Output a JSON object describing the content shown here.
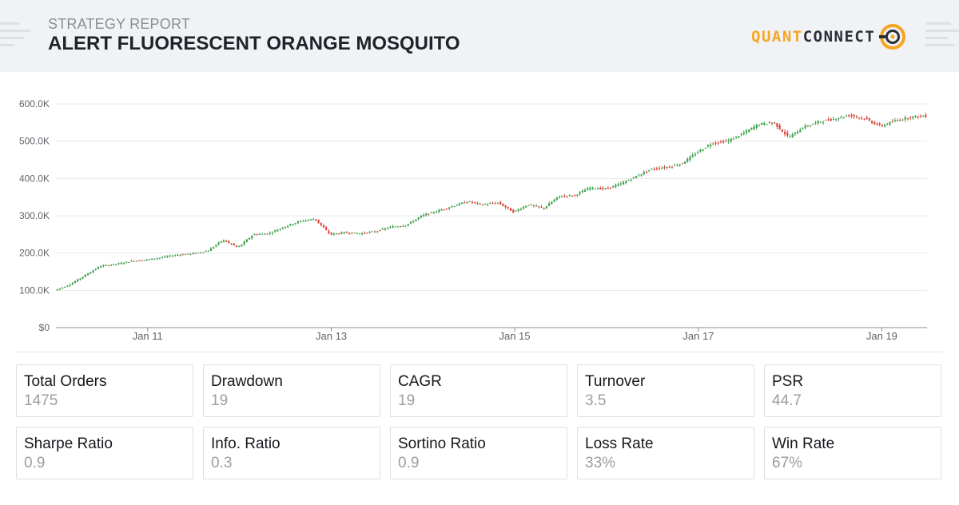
{
  "header": {
    "subtitle": "STRATEGY REPORT",
    "title": "ALERT FLUORESCENT ORANGE MOSQUITO",
    "logo": {
      "part1": "QUANT",
      "part2": "CONNECT",
      "icon": "quantconnect-logo-icon"
    }
  },
  "colors": {
    "up": "#3fa34d",
    "down": "#d9463b",
    "header_bg": "#f1f2f5",
    "logo_orange": "#f5a623",
    "grid": "#e6e8eb"
  },
  "chart_data": {
    "type": "candlestick",
    "title": "",
    "xlabel": "",
    "ylabel": "",
    "ylim": [
      0,
      600000
    ],
    "yticks": [
      0,
      100000,
      200000,
      300000,
      400000,
      500000,
      600000
    ],
    "ytick_labels": [
      "$0",
      "100.0K",
      "200.0K",
      "300.0K",
      "400.0K",
      "500.0K",
      "600.0K"
    ],
    "x_range": [
      "2010-01-01",
      "2019-06-30"
    ],
    "xtick_dates": [
      "2011-01-01",
      "2013-01-01",
      "2015-01-01",
      "2017-01-01",
      "2019-01-01"
    ],
    "xtick_labels": [
      "Jan 11",
      "Jan 13",
      "Jan 15",
      "Jan 17",
      "Jan 19"
    ],
    "grid": true,
    "series": [
      {
        "x": [
          "2010-01-01",
          "2010-03-01",
          "2010-05-01",
          "2010-07-01",
          "2010-09-01",
          "2010-11-01",
          "2011-01-01",
          "2011-03-01",
          "2011-05-01",
          "2011-07-01",
          "2011-09-01",
          "2011-11-01",
          "2012-01-01",
          "2012-03-01",
          "2012-05-01",
          "2012-07-01",
          "2012-09-01",
          "2012-11-01",
          "2013-01-01",
          "2013-03-01",
          "2013-05-01",
          "2013-07-01",
          "2013-09-01",
          "2013-11-01",
          "2014-01-01",
          "2014-03-01",
          "2014-05-01",
          "2014-07-01",
          "2014-09-01",
          "2014-11-01",
          "2015-01-01",
          "2015-03-01",
          "2015-05-01",
          "2015-07-01",
          "2015-09-01",
          "2015-11-01",
          "2016-01-01",
          "2016-03-01",
          "2016-05-01",
          "2016-07-01",
          "2016-09-01",
          "2016-11-01",
          "2017-01-01",
          "2017-03-01",
          "2017-05-01",
          "2017-07-01",
          "2017-09-01",
          "2017-11-01",
          "2018-01-01",
          "2018-03-01",
          "2018-05-01",
          "2018-07-01",
          "2018-09-01",
          "2018-11-01",
          "2019-01-01",
          "2019-03-01",
          "2019-05-01",
          "2019-06-30"
        ],
        "values": [
          100000,
          115000,
          140000,
          165000,
          170000,
          178000,
          182000,
          188000,
          195000,
          198000,
          205000,
          235000,
          215000,
          250000,
          252000,
          270000,
          285000,
          292000,
          250000,
          255000,
          252000,
          258000,
          270000,
          275000,
          300000,
          312000,
          325000,
          338000,
          330000,
          335000,
          310000,
          330000,
          320000,
          352000,
          355000,
          375000,
          372000,
          385000,
          405000,
          425000,
          430000,
          440000,
          470000,
          495000,
          500000,
          520000,
          545000,
          550000,
          510000,
          538000,
          552000,
          560000,
          570000,
          560000,
          540000,
          555000,
          565000,
          568000
        ]
      }
    ]
  },
  "stats": [
    {
      "label": "Total Orders",
      "value": "1475"
    },
    {
      "label": "Drawdown",
      "value": "19"
    },
    {
      "label": "CAGR",
      "value": "19"
    },
    {
      "label": "Turnover",
      "value": "3.5"
    },
    {
      "label": "PSR",
      "value": "44.7"
    },
    {
      "label": "Sharpe Ratio",
      "value": "0.9"
    },
    {
      "label": "Info. Ratio",
      "value": "0.3"
    },
    {
      "label": "Sortino Ratio",
      "value": "0.9"
    },
    {
      "label": "Loss Rate",
      "value": "33%"
    },
    {
      "label": "Win Rate",
      "value": "67%"
    }
  ]
}
